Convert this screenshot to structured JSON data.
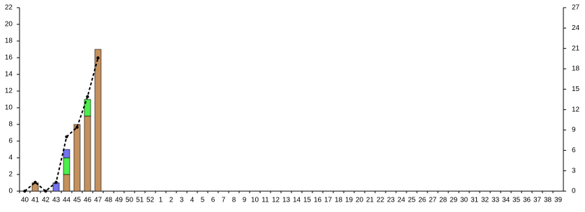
{
  "chart_data": {
    "type": "bar",
    "stacked": true,
    "categories": [
      "40",
      "41",
      "42",
      "43",
      "44",
      "45",
      "46",
      "47",
      "48",
      "49",
      "50",
      "51",
      "52",
      "1",
      "2",
      "3",
      "4",
      "5",
      "6",
      "7",
      "8",
      "9",
      "10",
      "11",
      "12",
      "13",
      "14",
      "15",
      "16",
      "17",
      "18",
      "19",
      "20",
      "21",
      "22",
      "23",
      "24",
      "25",
      "26",
      "27",
      "28",
      "29",
      "30",
      "31",
      "32",
      "33",
      "34",
      "35",
      "36",
      "37",
      "38",
      "39"
    ],
    "series": [
      {
        "color": "#c4915e",
        "values": [
          0,
          1,
          0,
          0,
          2,
          8,
          9,
          17,
          0,
          0,
          0,
          0,
          0,
          0,
          0,
          0,
          0,
          0,
          0,
          0,
          0,
          0,
          0,
          0,
          0,
          0,
          0,
          0,
          0,
          0,
          0,
          0,
          0,
          0,
          0,
          0,
          0,
          0,
          0,
          0,
          0,
          0,
          0,
          0,
          0,
          0,
          0,
          0,
          0,
          0,
          0,
          0
        ]
      },
      {
        "color": "#4cee4c",
        "values": [
          0,
          0,
          0,
          0,
          2,
          0,
          2,
          0,
          0,
          0,
          0,
          0,
          0,
          0,
          0,
          0,
          0,
          0,
          0,
          0,
          0,
          0,
          0,
          0,
          0,
          0,
          0,
          0,
          0,
          0,
          0,
          0,
          0,
          0,
          0,
          0,
          0,
          0,
          0,
          0,
          0,
          0,
          0,
          0,
          0,
          0,
          0,
          0,
          0,
          0,
          0,
          0
        ]
      },
      {
        "color": "#7474ee",
        "values": [
          0,
          0,
          0,
          1,
          1,
          0,
          0,
          0,
          0,
          0,
          0,
          0,
          0,
          0,
          0,
          0,
          0,
          0,
          0,
          0,
          0,
          0,
          0,
          0,
          0,
          0,
          0,
          0,
          0,
          0,
          0,
          0,
          0,
          0,
          0,
          0,
          0,
          0,
          0,
          0,
          0,
          0,
          0,
          0,
          0,
          0,
          0,
          0,
          0,
          0,
          0,
          0
        ]
      },
      {
        "type": "line",
        "axis": "y2",
        "color": "#000000",
        "dashed": true,
        "values": [
          0,
          1.3,
          0,
          1.3,
          8,
          9.4,
          13.9,
          19.6,
          null,
          null,
          null,
          null,
          null,
          null,
          null,
          null,
          null,
          null,
          null,
          null,
          null,
          null,
          null,
          null,
          null,
          null,
          null,
          null,
          null,
          null,
          null,
          null,
          null,
          null,
          null,
          null,
          null,
          null,
          null,
          null,
          null,
          null,
          null,
          null,
          null,
          null,
          null,
          null,
          null,
          null,
          null,
          null
        ]
      }
    ],
    "ylim": [
      0,
      22
    ],
    "yticks": [
      0,
      2,
      4,
      6,
      8,
      10,
      12,
      14,
      16,
      18,
      20,
      22
    ],
    "y2lim": [
      0,
      27
    ],
    "y2ticks": [
      0,
      3,
      6,
      9,
      12,
      15,
      18,
      21,
      24,
      27
    ],
    "grid": false
  }
}
